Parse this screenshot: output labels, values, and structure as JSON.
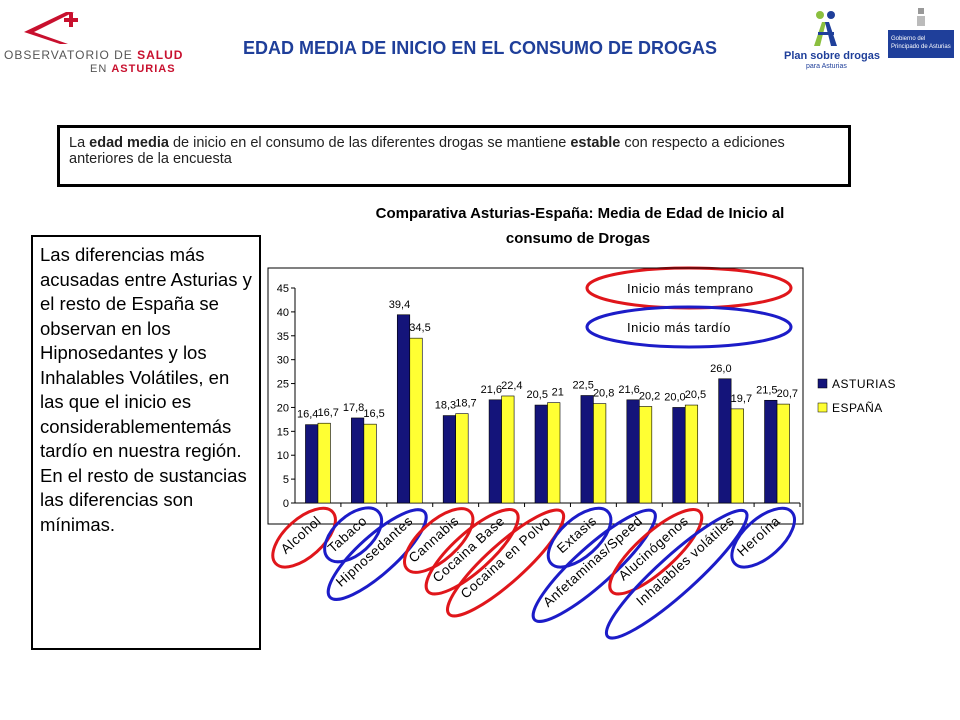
{
  "header": {
    "logo_left_line1_a": "OBSERVATORIO DE ",
    "logo_left_line1_b": "SALUD",
    "logo_left_line2_a": "EN ",
    "logo_left_line2_b": "ASTURIAS",
    "title": "EDAD MEDIA DE INICIO EN EL CONSUMO DE DROGAS",
    "plan_logo_text": "Plan sobre drogas",
    "plan_logo_sub": "para Asturias",
    "gob_logo_text": "Gobierno del Principado de Asturias"
  },
  "info_box": {
    "t1": "La ",
    "b1": "edad media",
    "t2": " de inicio en el consumo de las diferentes drogas se mantiene ",
    "b2": "estable",
    "t3": " con respecto a ediciones anteriores de la encuesta"
  },
  "side_text": "Las diferencias más acusadas entre Asturias y el resto de España se observan en los Hipnosedantes y los Inhalables Volátiles, en las que el inicio es considerablementemás tardío en nuestra región. En el resto de sustancias las diferencias son mínimas.",
  "annotations": {
    "early": "Inicio más temprano",
    "late": "Inicio más tardío"
  },
  "colors": {
    "asturias": "#14147a",
    "espana": "#ffff33",
    "early_ring": "#e0161b",
    "late_ring": "#1c1cc8",
    "title_blue": "#1f3f9a"
  },
  "chart_data": {
    "type": "bar",
    "title_line1": "Comparativa Asturias-España: Media de Edad de Inicio al",
    "title_line2": "consumo de Drogas",
    "categories": [
      "Alcohol",
      "Tabaco",
      "Hipnosedantes",
      "Cannabis",
      "Cocaina Base",
      "Cocaina en Polvo",
      "Extasis",
      "Anfetaminas/Speed",
      "Alucinógenos",
      "Inhalables volátiles",
      "Heroína"
    ],
    "series": [
      {
        "name": "ASTURIAS",
        "values": [
          16.4,
          17.8,
          39.4,
          18.3,
          21.6,
          20.5,
          22.5,
          21.6,
          20.0,
          26.0,
          21.5
        ],
        "labels": [
          "16,4",
          "17,8",
          "39,4",
          "18,3",
          "21,6",
          "20,5",
          "22,5",
          "21,6",
          "20,0",
          "26,0",
          "21,5"
        ]
      },
      {
        "name": "ESPAÑA",
        "values": [
          16.7,
          16.5,
          34.5,
          18.7,
          22.4,
          21.0,
          20.8,
          20.2,
          20.5,
          19.7,
          20.7
        ],
        "labels": [
          "16,7",
          "16,5",
          "34,5",
          "18,7",
          "22,4",
          "21",
          "20,8",
          "20,2",
          "20,5",
          "19,7",
          "20,7"
        ]
      }
    ],
    "ylim": [
      0,
      45
    ],
    "yticks": [
      "0",
      "5",
      "10",
      "15",
      "20",
      "25",
      "30",
      "35",
      "40",
      "45"
    ],
    "legend_position": "right",
    "ring_types": [
      "early",
      "late",
      "late",
      "early",
      "early",
      "early",
      "late",
      "late",
      "early",
      "late",
      "late"
    ]
  }
}
